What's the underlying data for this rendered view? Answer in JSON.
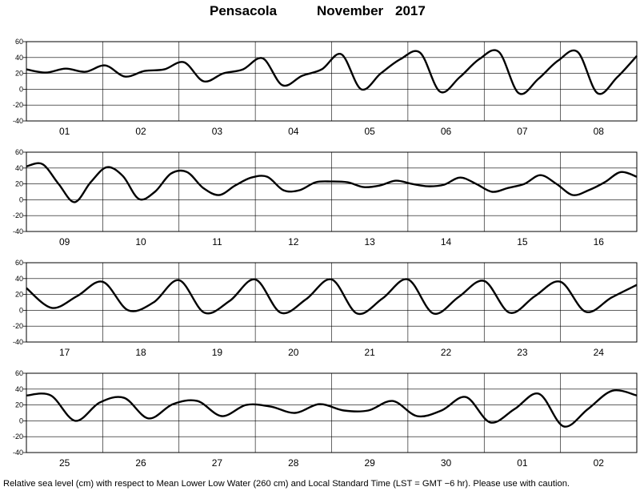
{
  "title": {
    "station": "Pensacola",
    "month": "November",
    "year": "2017"
  },
  "footnote": "Relative sea level (cm) with respect to Mean Lower Low Water (260 cm) and Local Standard Time (LST = GMT −6 hr). Please use with caution.",
  "chart_data": [
    {
      "type": "line",
      "days": [
        "01",
        "02",
        "03",
        "04",
        "05",
        "06",
        "07",
        "08"
      ],
      "ylim": [
        -40,
        60
      ],
      "yticks": [
        -40,
        -20,
        0,
        20,
        40,
        60
      ],
      "grid": true,
      "series": [
        {
          "values": [
            25,
            21,
            26,
            22,
            30,
            16,
            23,
            25,
            34,
            10,
            20,
            25,
            39,
            5,
            17,
            25,
            44,
            0,
            20,
            38,
            46,
            -3,
            15,
            38,
            47,
            -5,
            13,
            36,
            47,
            -5,
            15,
            42
          ]
        }
      ]
    },
    {
      "type": "line",
      "days": [
        "09",
        "10",
        "11",
        "12",
        "13",
        "14",
        "15",
        "16"
      ],
      "ylim": [
        -40,
        60
      ],
      "yticks": [
        -40,
        -20,
        0,
        20,
        40,
        60
      ],
      "grid": true,
      "series": [
        {
          "values": [
            42,
            45,
            20,
            -3,
            22,
            41,
            30,
            1,
            10,
            33,
            35,
            15,
            6,
            18,
            28,
            29,
            12,
            12,
            22,
            23,
            22,
            16,
            18,
            24,
            20,
            17,
            19,
            28,
            20,
            10,
            15,
            20,
            31,
            20,
            6,
            12,
            22,
            35,
            29
          ]
        }
      ]
    },
    {
      "type": "line",
      "days": [
        "17",
        "18",
        "19",
        "20",
        "21",
        "22",
        "23",
        "24"
      ],
      "ylim": [
        -40,
        60
      ],
      "yticks": [
        -40,
        -20,
        0,
        20,
        40,
        60
      ],
      "grid": true,
      "series": [
        {
          "values": [
            28,
            3,
            18,
            36,
            0,
            10,
            38,
            -3,
            12,
            39,
            -3,
            14,
            39,
            -4,
            15,
            39,
            -4,
            17,
            37,
            -3,
            18,
            36,
            -2,
            16,
            32
          ]
        }
      ]
    },
    {
      "type": "line",
      "days": [
        "25",
        "26",
        "27",
        "28",
        "29",
        "30",
        "01",
        "02"
      ],
      "ylim": [
        -40,
        60
      ],
      "yticks": [
        -40,
        -20,
        0,
        20,
        40,
        60
      ],
      "grid": true,
      "series": [
        {
          "values": [
            32,
            32,
            0,
            23,
            29,
            3,
            21,
            25,
            6,
            20,
            18,
            10,
            21,
            13,
            13,
            25,
            6,
            13,
            30,
            -2,
            15,
            34,
            -7,
            15,
            38,
            32
          ]
        }
      ]
    }
  ]
}
